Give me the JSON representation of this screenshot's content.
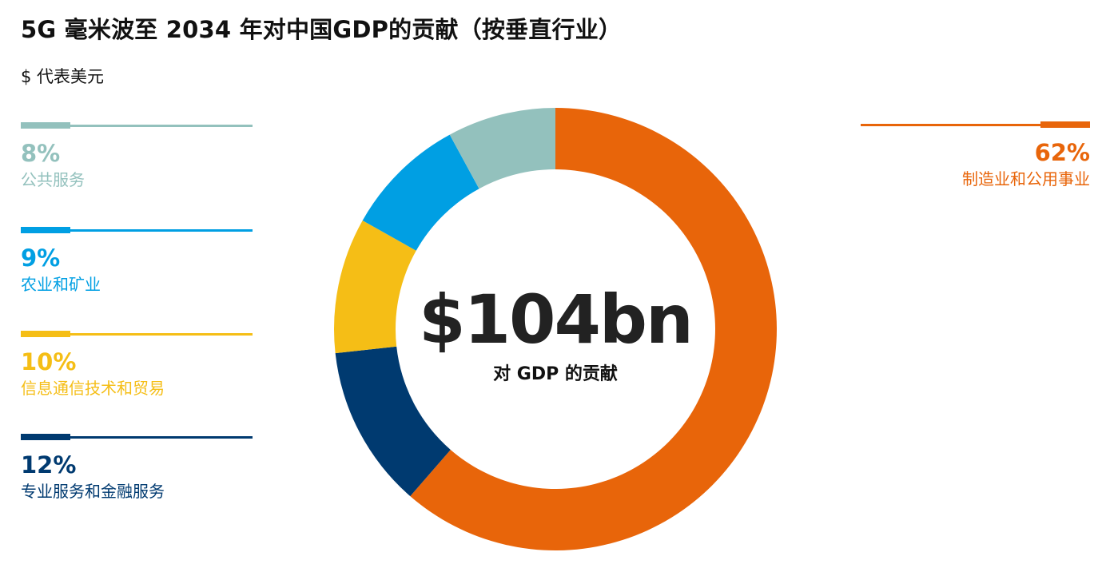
{
  "header": {
    "title": "5G 毫米波至 2034 年对中国GDP的贡献（按垂直行业）",
    "subtitle": "$ 代表美元"
  },
  "center": {
    "value": "$104bn",
    "label": "对 GDP 的贡献"
  },
  "chart_data": {
    "type": "pie",
    "donut": true,
    "title": "5G 毫米波至 2034 年对中国GDP的贡献（按垂直行业）",
    "total_label": "$104bn",
    "slices": [
      {
        "label": "制造业和公用事业",
        "value": 62,
        "display": "62%",
        "color": "#E8650A"
      },
      {
        "label": "专业服务和金融服务",
        "value": 12,
        "display": "12%",
        "color": "#003A70"
      },
      {
        "label": "信息通信技术和贸易",
        "value": 10,
        "display": "10%",
        "color": "#F5BE16"
      },
      {
        "label": "农业和矿业",
        "value": 9,
        "display": "9%",
        "color": "#009FE3"
      },
      {
        "label": "公共服务",
        "value": 8,
        "display": "8%",
        "color": "#93C1BD"
      }
    ],
    "start_angle": "12 o'clock",
    "direction": "clockwise"
  }
}
